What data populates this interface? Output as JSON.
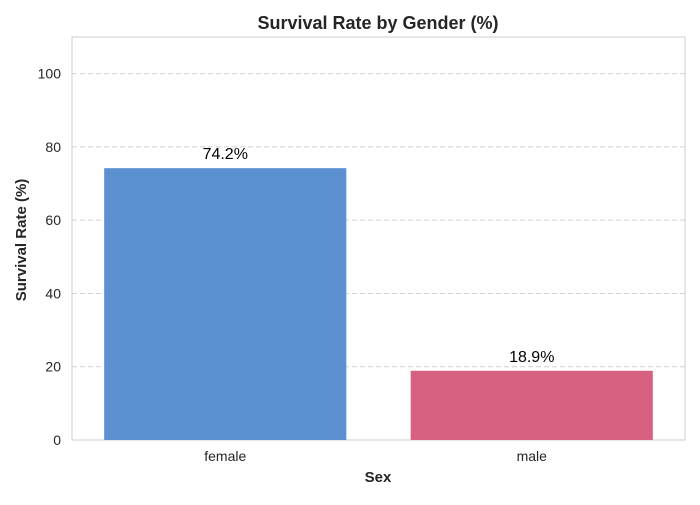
{
  "chart_data": {
    "type": "bar",
    "title": "Survival Rate by Gender (%)",
    "xlabel": "Sex",
    "ylabel": "Survival Rate (%)",
    "categories": [
      "female",
      "male"
    ],
    "values": [
      74.2,
      18.9
    ],
    "data_labels": [
      "74.2%",
      "18.9%"
    ],
    "colors": [
      "#5b91d0",
      "#d66180"
    ],
    "ylim": [
      0,
      110
    ],
    "yticks": [
      0,
      20,
      40,
      60,
      80,
      100
    ],
    "ytick_labels": [
      "0",
      "20",
      "40",
      "60",
      "80",
      "100"
    ],
    "grid": "y-dashed",
    "legend": "none"
  }
}
